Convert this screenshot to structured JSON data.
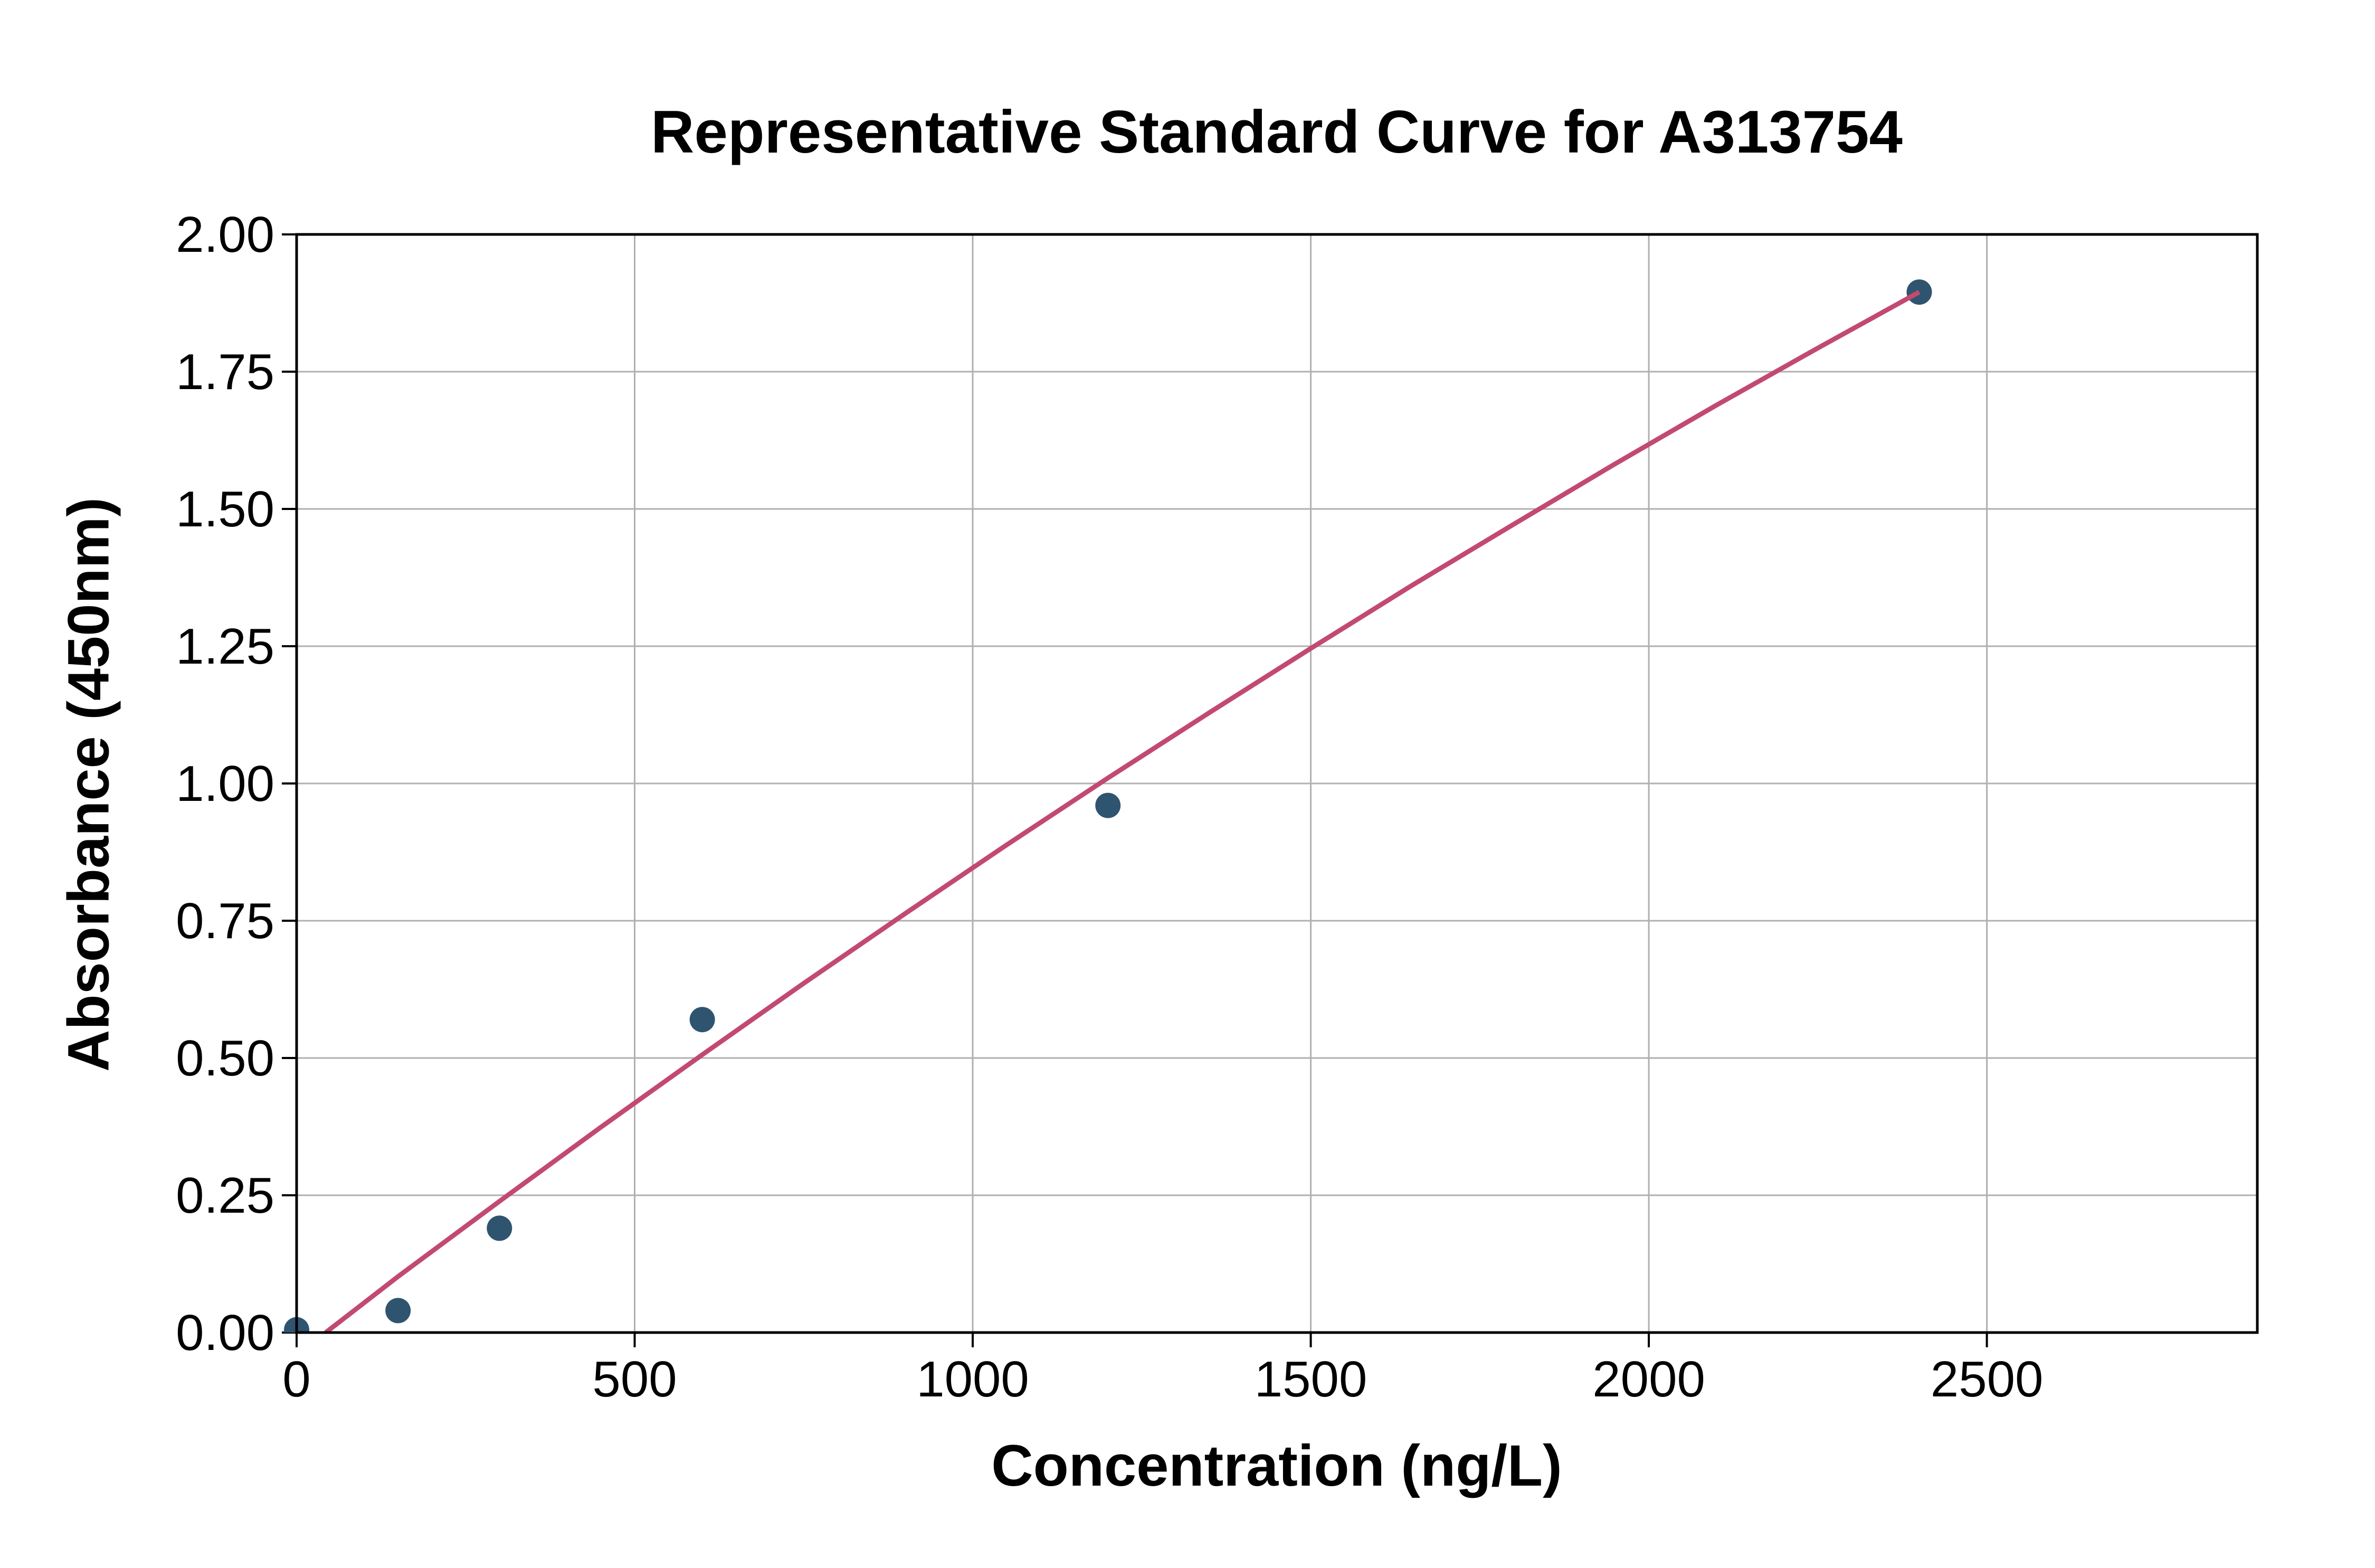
{
  "figure": {
    "background": "#FFFFFF"
  },
  "chart_data": {
    "type": "scatter",
    "title": "Representative Standard Curve for A313754",
    "xlabel": "Concentration (ng/L)",
    "ylabel": "Absorbance (450nm)",
    "xlim": [
      0,
      2900
    ],
    "ylim": [
      0,
      2.0
    ],
    "x_ticks": [
      0,
      500,
      1000,
      1500,
      2000,
      2500
    ],
    "x_tick_labels": [
      "0",
      "500",
      "1000",
      "1500",
      "2000",
      "2500"
    ],
    "y_ticks": [
      0,
      0.25,
      0.5,
      0.75,
      1.0,
      1.25,
      1.5,
      1.75,
      2.0
    ],
    "y_tick_labels": [
      "0.00",
      "0.25",
      "0.50",
      "0.75",
      "1.00",
      "1.25",
      "1.50",
      "1.75",
      "2.00"
    ],
    "grid": true,
    "legend": "none",
    "series": [
      {
        "name": "standard-points",
        "type": "scatter",
        "marker": "circle",
        "x": [
          0,
          150,
          300,
          600,
          1200,
          2400
        ],
        "y": [
          0.005,
          0.04,
          0.19,
          0.57,
          0.96,
          1.895
        ]
      },
      {
        "name": "fitted-curve",
        "type": "line",
        "x": [
          43,
          150,
          300,
          450,
          600,
          750,
          900,
          1050,
          1200,
          1350,
          1500,
          1650,
          1800,
          1950,
          2100,
          2250,
          2400
        ],
        "y": [
          0,
          0.102,
          0.239,
          0.374,
          0.506,
          0.636,
          0.763,
          0.888,
          1.01,
          1.129,
          1.246,
          1.361,
          1.472,
          1.582,
          1.689,
          1.793,
          1.895
        ]
      }
    ],
    "colors": {
      "marker": "#2F5470",
      "line": "#C24A70",
      "grid": "#B0B0B0",
      "axis": "#000000",
      "text": "#000000",
      "background": "#FFFFFF"
    }
  }
}
